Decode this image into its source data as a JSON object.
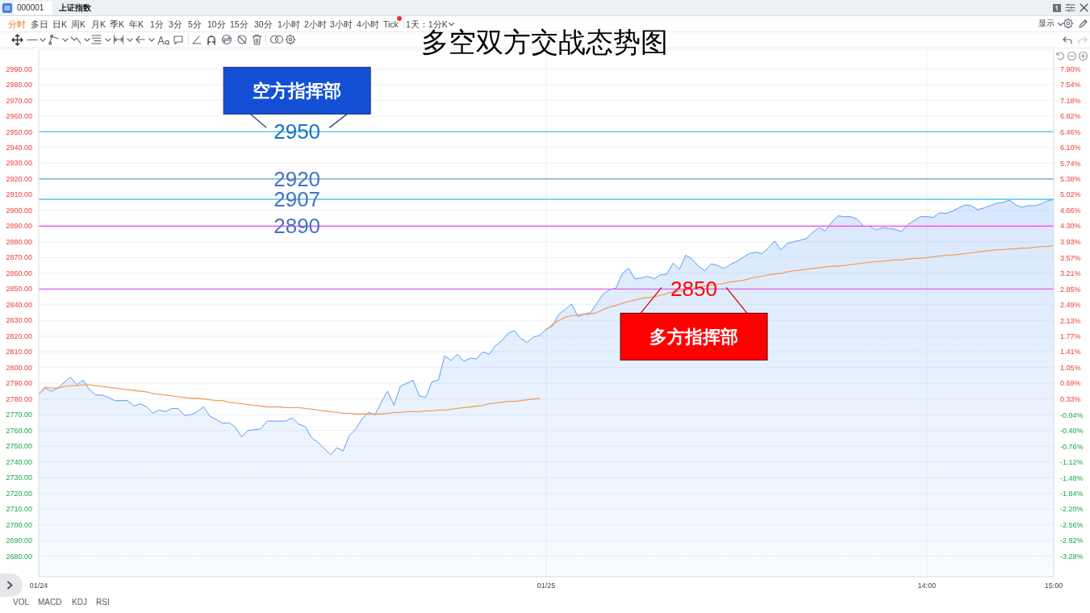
{
  "chart_data": {
    "type": "area",
    "title": "多空双方交战态势图",
    "annotations": [
      {
        "text": "空方指挥部",
        "y": 2950
      },
      {
        "text": "多方指挥部",
        "y": 2850
      },
      "000001",
      "上证指数",
      "分时",
      "多日",
      "日K",
      "周K",
      "月K",
      "季K",
      "年K",
      "1分",
      "3分",
      "5分",
      "10分",
      "15分",
      "30分",
      "1小时",
      "2小时",
      "3小时",
      "4小时",
      "Tick",
      "1天：1分K",
      "显示",
      "VOL",
      "MACD",
      "KDJ",
      "RSI"
    ],
    "categories": [
      "01/24",
      null,
      null,
      null,
      null,
      null,
      null,
      null,
      null,
      null,
      null,
      null,
      null,
      null,
      null,
      null,
      null,
      null,
      null,
      null,
      null,
      null,
      null,
      null,
      null,
      null,
      null,
      null,
      null,
      null,
      null,
      null,
      null,
      null,
      null,
      null,
      null,
      null,
      null,
      null,
      null,
      null,
      null,
      null,
      null,
      null,
      null,
      null,
      null,
      null,
      null,
      null,
      null,
      null,
      null,
      null,
      null,
      null,
      null,
      null,
      null,
      null,
      null,
      null,
      null,
      null,
      null,
      null,
      null,
      null,
      null,
      null,
      null,
      null,
      null,
      null,
      null,
      null,
      null,
      null,
      "01/25",
      null,
      null,
      null,
      null,
      null,
      null,
      null,
      null,
      null,
      null,
      null,
      null,
      null,
      null,
      null,
      null,
      null,
      null,
      null,
      null,
      null,
      null,
      null,
      null,
      null,
      null,
      null,
      null,
      null,
      null,
      null,
      null,
      null,
      null,
      null,
      null,
      null,
      null,
      null,
      null,
      null,
      null,
      null,
      null,
      null,
      null,
      null,
      null,
      null,
      null,
      null,
      null,
      null,
      null,
      null,
      null,
      null,
      null,
      null,
      "14:00",
      null,
      null,
      null,
      null,
      null,
      null,
      null,
      null,
      null,
      null,
      null,
      null,
      null,
      null,
      null,
      null,
      null,
      null,
      null,
      "15:00"
    ],
    "ylim": [
      2667,
      3002
    ],
    "yticks": [
      {
        "value": 2680,
        "label": "2680.00"
      },
      {
        "value": 2690,
        "label": "2690.00"
      },
      {
        "value": 2700,
        "label": "2700.00"
      },
      {
        "value": 2710,
        "label": "2710.00"
      },
      {
        "value": 2720,
        "label": "2720.00"
      },
      {
        "value": 2730,
        "label": "2730.00"
      },
      {
        "value": 2740,
        "label": "2740.00"
      },
      {
        "value": 2750,
        "label": "2750.00"
      },
      {
        "value": 2760,
        "label": "2760.00"
      },
      {
        "value": 2770,
        "label": "2770.00"
      },
      {
        "value": 2780,
        "label": "2780.00"
      },
      {
        "value": 2790,
        "label": "2790.00"
      },
      {
        "value": 2800,
        "label": "2800.00"
      },
      {
        "value": 2810,
        "label": "2810.00"
      },
      {
        "value": 2820,
        "label": "2820.00"
      },
      {
        "value": 2830,
        "label": "2830.00"
      },
      {
        "value": 2840,
        "label": "2840.00"
      },
      {
        "value": 2850,
        "label": "2850.00"
      },
      {
        "value": 2860,
        "label": "2860.00"
      },
      {
        "value": 2870,
        "label": "2870.00"
      },
      {
        "value": 2880,
        "label": "2880.00"
      },
      {
        "value": 2890,
        "label": "2890.00"
      },
      {
        "value": 2900,
        "label": "2900.00"
      },
      {
        "value": 2910,
        "label": "2910.00"
      },
      {
        "value": 2920,
        "label": "2920.00"
      },
      {
        "value": 2930,
        "label": "2930.00"
      },
      {
        "value": 2940,
        "label": "2940.00"
      },
      {
        "value": 2950,
        "label": "2950.00"
      },
      {
        "value": 2960,
        "label": "2960.00"
      },
      {
        "value": 2970,
        "label": "2970.00"
      },
      {
        "value": 2980,
        "label": "2980.00"
      },
      {
        "value": 2990,
        "label": "2990.00"
      }
    ],
    "y2lim": [
      -3.75,
      8.34
    ],
    "y2ticks": [
      {
        "value": -3.28,
        "label": "-3.28%"
      },
      {
        "value": -2.92,
        "label": "-2.92%"
      },
      {
        "value": -2.56,
        "label": "-2.56%"
      },
      {
        "value": -2.2,
        "label": "-2.20%"
      },
      {
        "value": -1.84,
        "label": "-1.84%"
      },
      {
        "value": -1.48,
        "label": "-1.48%"
      },
      {
        "value": -1.12,
        "label": "-1.12%"
      },
      {
        "value": -0.76,
        "label": "-0.76%"
      },
      {
        "value": -0.4,
        "label": "-0.40%"
      },
      {
        "value": -0.04,
        "label": "-0.04%"
      },
      {
        "value": 0.33,
        "label": "0.33%"
      },
      {
        "value": 0.69,
        "label": "0.69%"
      },
      {
        "value": 1.05,
        "label": "1.05%"
      },
      {
        "value": 1.41,
        "label": "1.41%"
      },
      {
        "value": 1.77,
        "label": "1.77%"
      },
      {
        "value": 2.13,
        "label": "2.13%"
      },
      {
        "value": 2.49,
        "label": "2.49%"
      },
      {
        "value": 2.85,
        "label": "2.85%"
      },
      {
        "value": 3.21,
        "label": "3.21%"
      },
      {
        "value": 3.57,
        "label": "3.57%"
      },
      {
        "value": 3.93,
        "label": "3.93%"
      },
      {
        "value": 4.3,
        "label": "4.30%"
      },
      {
        "value": 4.66,
        "label": "4.66%"
      },
      {
        "value": 5.02,
        "label": "5.02%"
      },
      {
        "value": 5.38,
        "label": "5.38%"
      },
      {
        "value": 5.74,
        "label": "5.74%"
      },
      {
        "value": 6.1,
        "label": "6.10%"
      },
      {
        "value": 6.46,
        "label": "6.46%"
      },
      {
        "value": 6.82,
        "label": "6.82%"
      },
      {
        "value": 7.18,
        "label": "7.18%"
      },
      {
        "value": 7.54,
        "label": "7.54%"
      },
      {
        "value": 7.9,
        "label": "7.90%"
      }
    ],
    "grid": true,
    "ref_lines": [
      {
        "axis": "y",
        "value": 2950,
        "label": "2950",
        "color": "#3ec6f2"
      },
      {
        "axis": "y",
        "value": 2920,
        "label": "2920",
        "color": "#5aa0d8"
      },
      {
        "axis": "y",
        "value": 2907,
        "label": "2907",
        "color": "#32c2ec"
      },
      {
        "axis": "y",
        "value": 2890,
        "label": "2890",
        "color": "#ff3cff"
      },
      {
        "axis": "y",
        "value": 2850,
        "label": "2850",
        "color": "#dc64f0"
      }
    ],
    "series": [
      {
        "color": "#5a9cf5",
        "values": [
          2783,
          2787,
          2785,
          2787,
          2790.5,
          2794,
          2789,
          2792,
          2786,
          2782.5,
          2782.5,
          2781,
          2779,
          2779,
          2779,
          2775.5,
          2777,
          2775,
          2771,
          2773,
          2772,
          2774,
          2774,
          2769.5,
          2770,
          2772,
          2775,
          2769,
          2767,
          2764.5,
          2765,
          2762,
          2756,
          2760,
          2760.5,
          2761,
          2766,
          2766,
          2766,
          2766,
          2768,
          2764,
          2762.5,
          2755.5,
          2752.5,
          2748.5,
          2744.5,
          2749,
          2747,
          2757,
          2761,
          2767.5,
          2771.5,
          2770,
          2778,
          2785,
          2776,
          2788,
          2790,
          2792,
          2782,
          2781,
          2791,
          2792,
          2807.5,
          2804.5,
          2808.5,
          2804,
          2806,
          2805.5,
          2810,
          2808.5,
          2814,
          2817,
          2822,
          2823.5,
          2818.5,
          2816,
          2819.5,
          2820.5,
          2824.5,
          2826.5,
          2834,
          2837,
          2840.5,
          2832.5,
          2834,
          2835,
          2841,
          2847,
          2849.5,
          2850.5,
          2860,
          2863,
          2856.5,
          2857,
          2858,
          2856.5,
          2859,
          2859.5,
          2866.5,
          2862.5,
          2871.5,
          2869,
          2864.5,
          2861.5,
          2866,
          2865,
          2863,
          2865.5,
          2867.5,
          2870,
          2872.5,
          2873.5,
          2872.5,
          2876,
          2880.5,
          2875,
          2879,
          2880,
          2881,
          2882,
          2886,
          2889,
          2887,
          2892.5,
          2896.5,
          2896,
          2896,
          2894.5,
          2890,
          2890,
          2887.5,
          2889,
          2888.5,
          2888,
          2886.5,
          2891,
          2893.5,
          2896,
          2896,
          2895.5,
          2898.5,
          2898,
          2899.5,
          2901.5,
          2903.5,
          2903,
          2900.5,
          2901.5,
          2903,
          2904.5,
          2905,
          2906.5,
          2903.5,
          2902,
          2903,
          2903,
          2904,
          2906,
          2907
        ]
      },
      {
        "type": "line",
        "color": "#f0a060",
        "values": [
          2783,
          2787.5,
          2787,
          2787,
          2788,
          2788.5,
          2788.5,
          2789,
          2789,
          2788.5,
          2788,
          2787.5,
          2787,
          2786.5,
          2786,
          2785.5,
          2785,
          2784.5,
          2783.5,
          2783,
          2782.5,
          2782,
          2781.5,
          2781,
          2780.5,
          2780.5,
          2780,
          2779.5,
          2779,
          2779,
          2778,
          2777.5,
          2777,
          2776.5,
          2776,
          2775.5,
          2775,
          2775,
          2775,
          2774.5,
          2774.5,
          2774.5,
          2774,
          2773.5,
          2773,
          2772.5,
          2772,
          2771.5,
          2771,
          2771,
          2770.5,
          2770.5,
          2770.5,
          2770.5,
          2770.5,
          2771,
          2771.5,
          2771.5,
          2772,
          2772,
          2772,
          2772.5,
          2772.5,
          2773,
          2773,
          2773.5,
          2774,
          2774.5,
          2775,
          2775.5,
          2776,
          2777,
          2777.5,
          2778,
          2778.5,
          2778.5,
          2779,
          2779.5,
          2780,
          2780.5,
          null,
          null,
          null,
          null,
          null,
          null,
          null,
          null,
          null,
          null,
          null,
          null,
          null,
          null,
          null,
          null,
          null,
          null,
          null,
          null,
          null,
          null,
          null,
          null,
          null,
          null,
          null,
          null,
          null,
          null,
          null,
          null,
          null,
          null,
          null,
          null,
          null,
          null,
          null,
          null,
          null,
          null,
          null,
          null,
          null,
          null,
          null,
          null,
          null,
          null,
          null,
          null,
          null,
          null,
          null,
          null,
          null,
          null,
          null,
          null,
          null,
          null,
          null,
          null,
          null,
          null,
          null,
          null,
          null,
          null,
          null,
          null,
          null,
          null,
          null,
          null,
          null,
          null,
          null,
          null,
          null
        ]
      },
      {
        "type": "line",
        "color": "#f0a060",
        "values": [
          null,
          null,
          null,
          null,
          null,
          null,
          null,
          null,
          null,
          null,
          null,
          null,
          null,
          null,
          null,
          null,
          null,
          null,
          null,
          null,
          null,
          null,
          null,
          null,
          null,
          null,
          null,
          null,
          null,
          null,
          null,
          null,
          null,
          null,
          null,
          null,
          null,
          null,
          null,
          null,
          null,
          null,
          null,
          null,
          null,
          null,
          null,
          null,
          null,
          null,
          null,
          null,
          null,
          null,
          null,
          null,
          null,
          null,
          null,
          null,
          null,
          null,
          null,
          null,
          null,
          null,
          null,
          null,
          null,
          null,
          null,
          null,
          null,
          null,
          null,
          null,
          null,
          null,
          null,
          null,
          2824,
          2827.5,
          2830,
          2832,
          2833,
          2833.5,
          2834,
          2834,
          2835,
          2837,
          2838.5,
          2839.5,
          2841,
          2842,
          2843,
          2844,
          2844.5,
          2845,
          2846,
          2847,
          2848,
          2848.5,
          2849.5,
          2850,
          2851,
          2852,
          2852.5,
          2853,
          2853.5,
          2854.5,
          2855,
          2855.5,
          2856.5,
          2857.5,
          2858,
          2859,
          2859.5,
          2860,
          2861,
          2861.5,
          2862,
          2862.5,
          2863,
          2863.5,
          2864,
          2864.5,
          2864.5,
          2865,
          2865.5,
          2866,
          2866.5,
          2867,
          2867.5,
          2867.5,
          2868,
          2868.5,
          2868.5,
          2869,
          2869.5,
          2869.5,
          2870,
          2870.5,
          2871,
          2871.5,
          2871.5,
          2872,
          2872.5,
          2873,
          2873.5,
          2874,
          2874.5,
          2875,
          2875,
          2875.5,
          2875.5,
          2876,
          2876,
          2876.5,
          2877,
          2877,
          2877.5
        ]
      }
    ]
  }
}
